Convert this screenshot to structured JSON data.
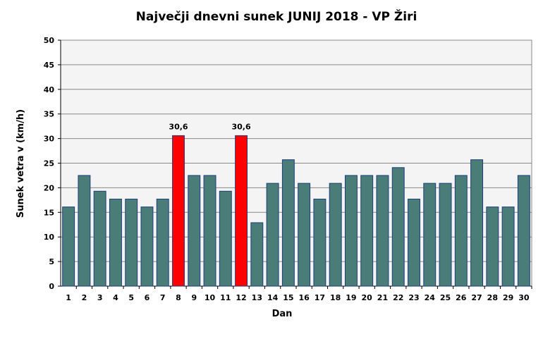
{
  "chart_data": {
    "type": "bar",
    "title": "Največji dnevni sunek JUNIJ 2018 - VP Žiri",
    "xlabel": "Dan",
    "ylabel": "Sunek vetra v (km/h)",
    "ylim": [
      0,
      50
    ],
    "yticks": [
      0,
      5,
      10,
      15,
      20,
      25,
      30,
      35,
      40,
      45,
      50
    ],
    "grid": true,
    "categories": [
      "1",
      "2",
      "3",
      "4",
      "5",
      "6",
      "7",
      "8",
      "9",
      "10",
      "11",
      "12",
      "13",
      "14",
      "15",
      "16",
      "17",
      "18",
      "19",
      "20",
      "21",
      "22",
      "23",
      "24",
      "25",
      "26",
      "27",
      "28",
      "29",
      "30"
    ],
    "values": [
      16.1,
      22.5,
      19.3,
      17.7,
      17.7,
      16.1,
      17.7,
      30.6,
      22.5,
      22.5,
      19.3,
      30.6,
      12.9,
      20.9,
      25.7,
      20.9,
      17.7,
      20.9,
      22.5,
      22.5,
      22.5,
      24.1,
      17.7,
      20.9,
      20.9,
      22.5,
      25.7,
      16.1,
      16.1,
      22.5
    ],
    "highlighted": [
      8,
      12
    ],
    "data_labels": {
      "8": "30,6",
      "12": "30,6"
    },
    "colors": {
      "bar": "#4a7c78",
      "highlight": "#ff0000",
      "bar_border": "#1f3f7a",
      "plot_bg": "#f4f4f4",
      "grid": "#888888"
    }
  }
}
